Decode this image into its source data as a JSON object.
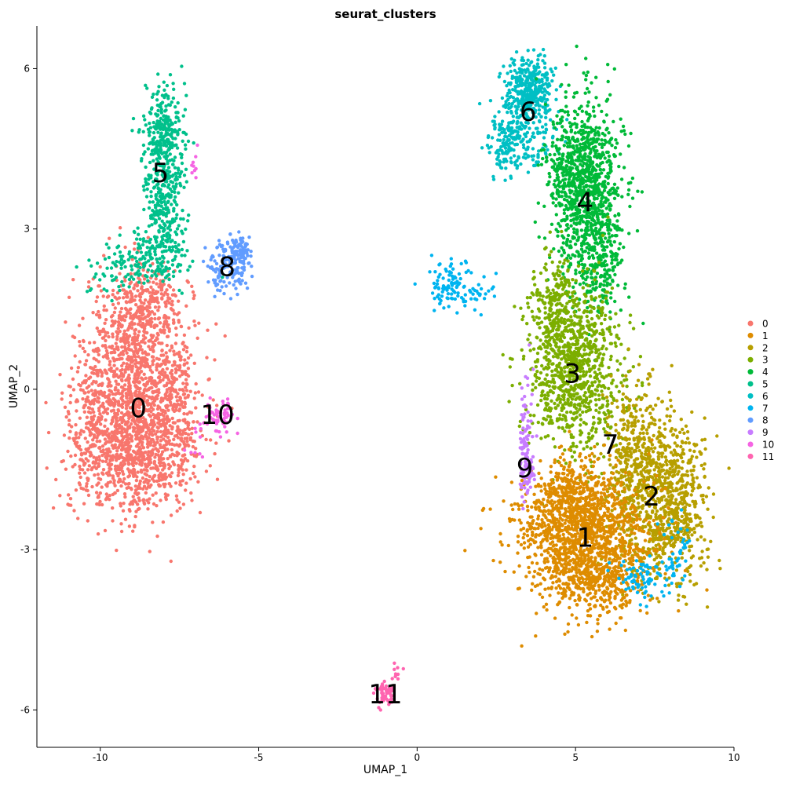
{
  "chart_data": {
    "type": "scatter",
    "title": "seurat_clusters",
    "xlabel": "UMAP_1",
    "ylabel": "UMAP_2",
    "xlim": [
      -12,
      10
    ],
    "ylim": [
      -6.7,
      6.8
    ],
    "x_ticks": [
      -10,
      -5,
      0,
      5,
      10
    ],
    "x_tick_labels": [
      "-10",
      "-5",
      "0",
      "5",
      "10"
    ],
    "y_ticks": [
      -6,
      -3,
      0,
      3,
      6
    ],
    "y_tick_labels": [
      "-6",
      "-3",
      "0",
      "3",
      "6"
    ],
    "grid": false,
    "legend_position": "right",
    "series": [
      {
        "name": "0",
        "color": "#F8766D",
        "center": [
          -8.8,
          -0.2
        ],
        "label_pos": [
          -8.8,
          -0.35
        ]
      },
      {
        "name": "1",
        "color": "#DE8C00",
        "center": [
          5.3,
          -2.8
        ],
        "label_pos": [
          5.3,
          -2.77
        ]
      },
      {
        "name": "2",
        "color": "#B79F00",
        "center": [
          7.5,
          -2.1
        ],
        "label_pos": [
          7.4,
          -2.0
        ]
      },
      {
        "name": "3",
        "color": "#7CAE00",
        "center": [
          4.9,
          0.3
        ],
        "label_pos": [
          4.9,
          0.3
        ]
      },
      {
        "name": "4",
        "color": "#00BA38",
        "center": [
          5.4,
          3.6
        ],
        "label_pos": [
          5.3,
          3.5
        ]
      },
      {
        "name": "5",
        "color": "#00C08B",
        "center": [
          -8.0,
          3.9
        ],
        "label_pos": [
          -8.1,
          4.05
        ]
      },
      {
        "name": "6",
        "color": "#00BFC4",
        "center": [
          3.4,
          5.3
        ],
        "label_pos": [
          3.5,
          5.2
        ]
      },
      {
        "name": "7",
        "color": "#00B4F0",
        "center": [
          1.1,
          1.9
        ],
        "label_pos": [
          6.1,
          -1.03
        ]
      },
      {
        "name": "8",
        "color": "#619CFF",
        "center": [
          -6.2,
          2.3
        ],
        "label_pos": [
          -6.0,
          2.3
        ]
      },
      {
        "name": "9",
        "color": "#C77CFF",
        "center": [
          3.4,
          -0.9
        ],
        "label_pos": [
          3.4,
          -1.47
        ]
      },
      {
        "name": "10",
        "color": "#F564E3",
        "center": [
          -6.2,
          -0.5
        ],
        "label_pos": [
          -6.3,
          -0.47
        ]
      },
      {
        "name": "11",
        "color": "#FF64B0",
        "center": [
          -1.0,
          -5.7
        ],
        "label_pos": [
          -1.0,
          -5.7
        ]
      }
    ]
  }
}
